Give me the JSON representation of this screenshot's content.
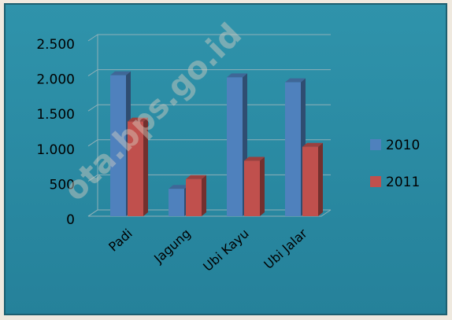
{
  "chart_data": {
    "type": "bar3d",
    "categories": [
      "Padi",
      "Jagung",
      "Ubi Kayu",
      "Ubi Jalar"
    ],
    "series": [
      {
        "name": "2010",
        "color": "#4f81bd",
        "values": [
          2010,
          390,
          1980,
          1910
        ]
      },
      {
        "name": "2011",
        "color": "#c0504d",
        "values": [
          1350,
          530,
          790,
          990
        ]
      }
    ],
    "ylim": [
      0,
      2500
    ],
    "yticks": [
      0,
      500,
      {
        "value": 1000,
        "label": "1.000"
      },
      {
        "value": 1500,
        "label": "1.500"
      },
      {
        "value": 2000,
        "label": "2.000"
      },
      {
        "value": 2500,
        "label": "2.500"
      }
    ],
    "grid": true,
    "watermark": "ota.bps.go.id"
  }
}
